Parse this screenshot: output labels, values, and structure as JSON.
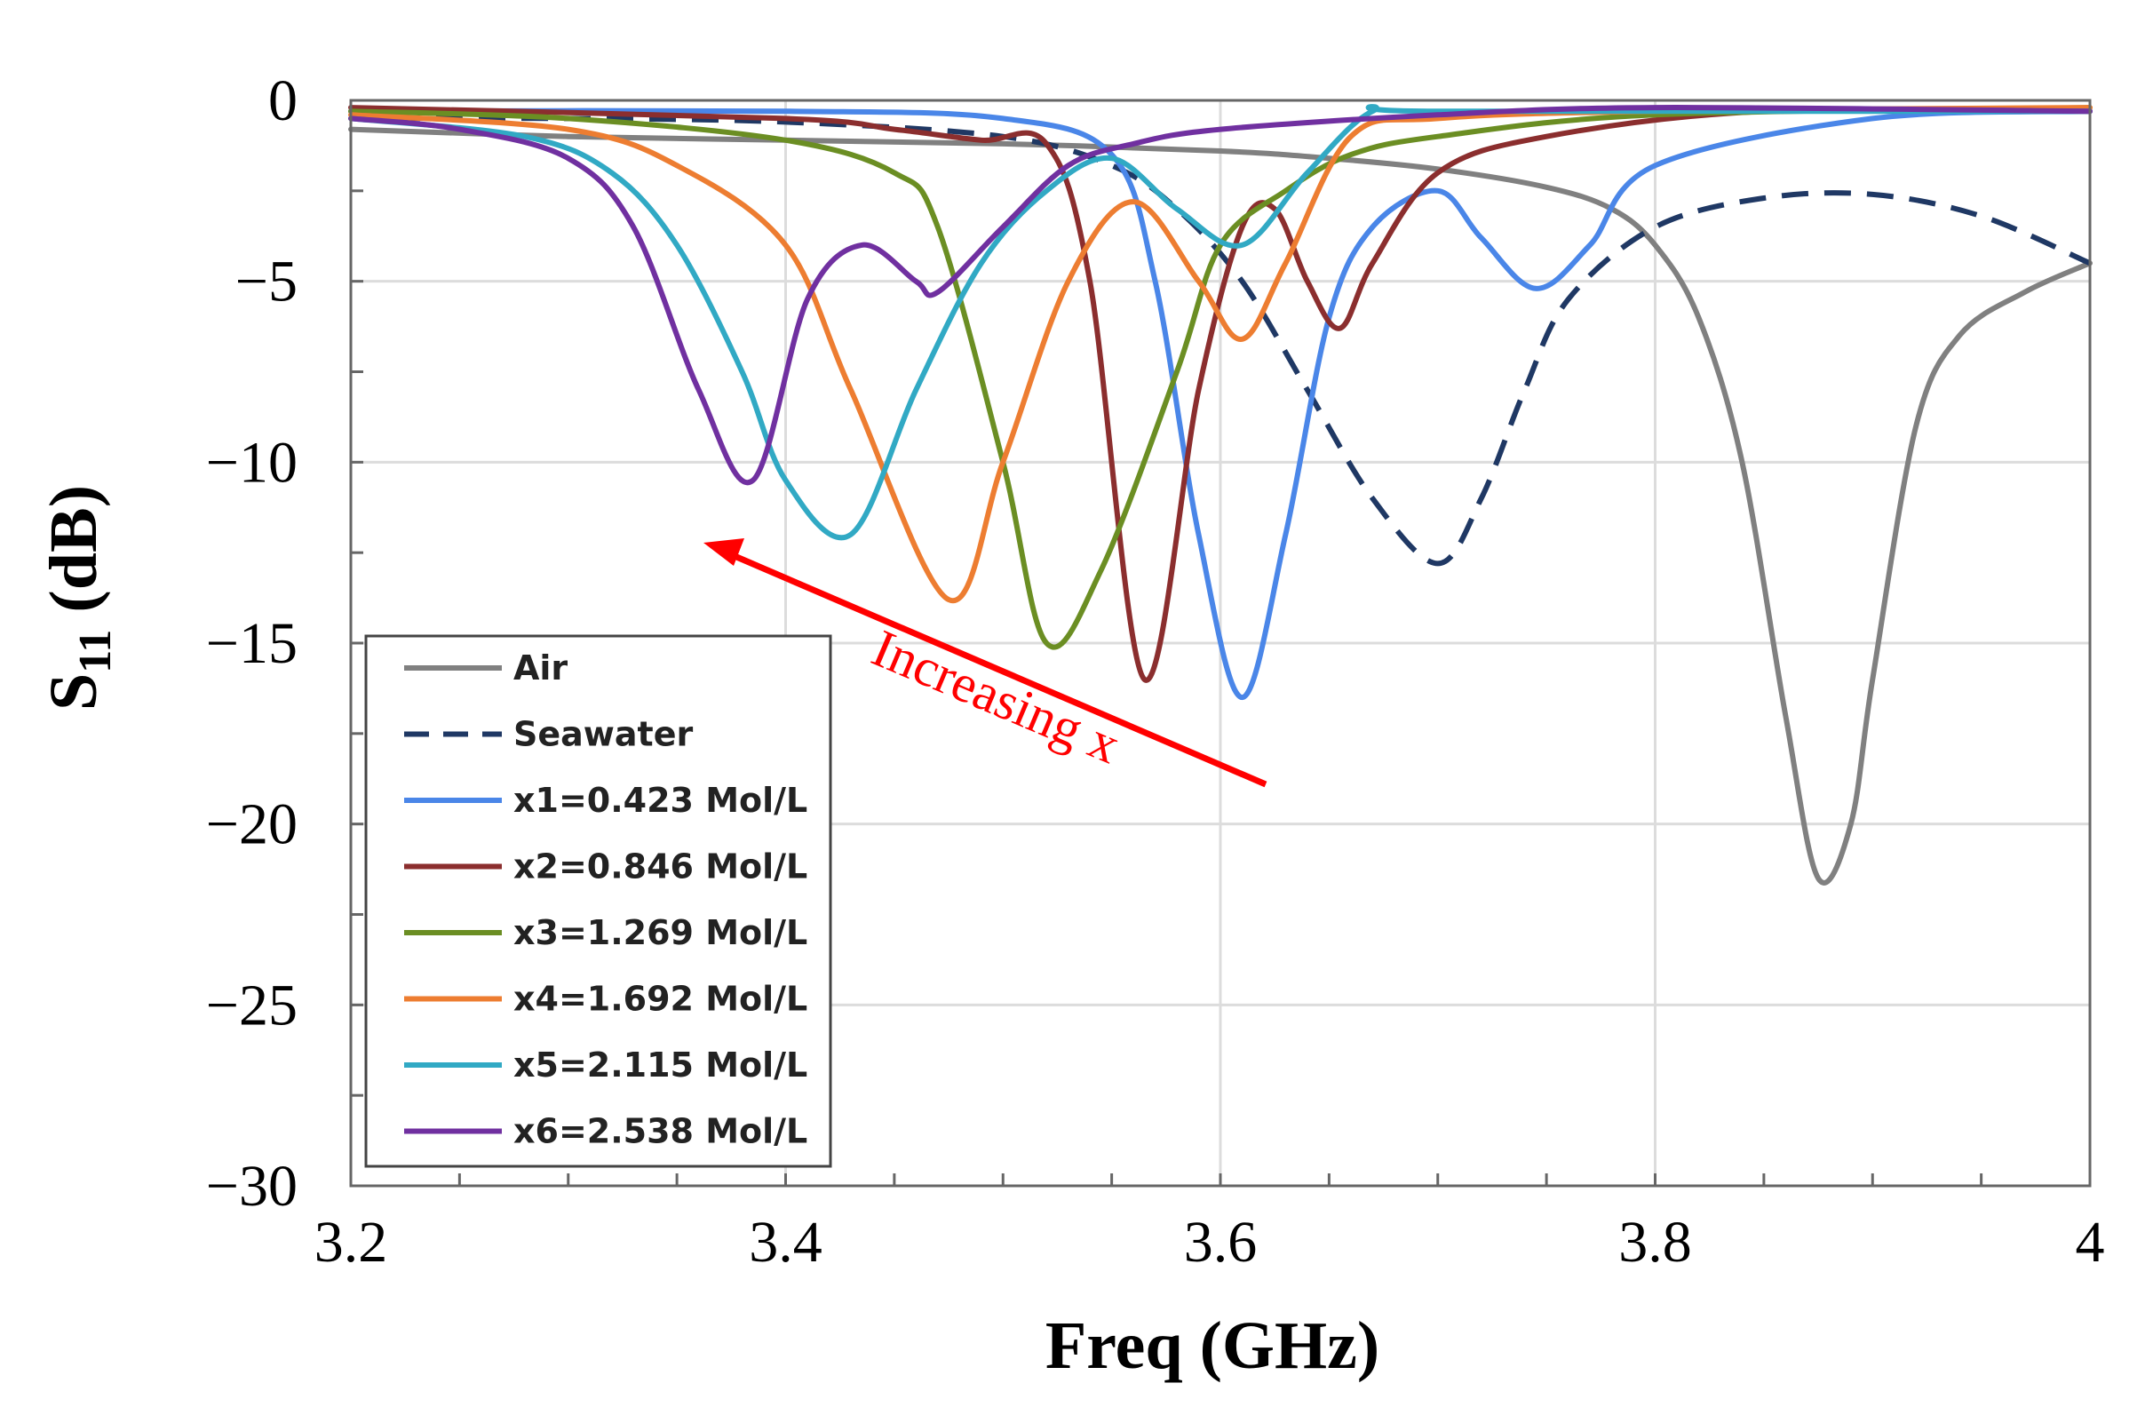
{
  "chart_data": {
    "type": "line",
    "title": "",
    "xlabel": "Freq (GHz)",
    "ylabel_main": "S",
    "ylabel_sub": "11",
    "ylabel_unit": " (dB)",
    "xlim": [
      3.2,
      4.0
    ],
    "ylim": [
      -30,
      0
    ],
    "xticks": [
      3.2,
      3.4,
      3.6,
      3.8,
      4.0
    ],
    "xtick_labels": [
      "3.2",
      "3.4",
      "3.6",
      "3.8",
      "4"
    ],
    "xminor_step": 0.05,
    "yticks": [
      0,
      -5,
      -10,
      -15,
      -20,
      -25,
      -30
    ],
    "ytick_labels": [
      "0",
      "−5",
      "−10",
      "−15",
      "−20",
      "−25",
      "−30"
    ],
    "yminor_step": 2.5,
    "grid": true,
    "legend_position": "bottom-left",
    "series": [
      {
        "name": "Air",
        "color": "#808080",
        "dash": "solid",
        "x": [
          3.2,
          3.3,
          3.4,
          3.5,
          3.6,
          3.65,
          3.7,
          3.75,
          3.78,
          3.8,
          3.82,
          3.84,
          3.86,
          3.875,
          3.89,
          3.9,
          3.92,
          3.94,
          3.97,
          4.0
        ],
        "y": [
          -0.8,
          -1.0,
          -1.1,
          -1.2,
          -1.4,
          -1.6,
          -1.9,
          -2.4,
          -3.0,
          -4.0,
          -6.0,
          -10.0,
          -17.0,
          -21.5,
          -20.0,
          -16.0,
          -9.0,
          -6.5,
          -5.3,
          -4.5
        ]
      },
      {
        "name": "Seawater",
        "color": "#1f3864",
        "dash": "dashed",
        "x": [
          3.2,
          3.3,
          3.4,
          3.5,
          3.55,
          3.58,
          3.61,
          3.64,
          3.67,
          3.7,
          3.72,
          3.74,
          3.76,
          3.8,
          3.85,
          3.9,
          3.95,
          4.0
        ],
        "y": [
          -0.5,
          -0.5,
          -0.6,
          -1.0,
          -1.8,
          -3.0,
          -5.0,
          -8.0,
          -11.0,
          -12.8,
          -11.0,
          -8.0,
          -5.5,
          -3.5,
          -2.7,
          -2.6,
          -3.2,
          -4.5
        ]
      },
      {
        "name": "x1=0.423 Mol/L",
        "color": "#4a86e8",
        "dash": "solid",
        "x": [
          3.2,
          3.4,
          3.5,
          3.55,
          3.57,
          3.59,
          3.61,
          3.63,
          3.65,
          3.67,
          3.7,
          3.72,
          3.745,
          3.77,
          3.8,
          3.9,
          4.0
        ],
        "y": [
          -0.3,
          -0.3,
          -0.5,
          -1.5,
          -5.0,
          -12.0,
          -16.5,
          -12.0,
          -6.0,
          -3.5,
          -2.5,
          -3.8,
          -5.2,
          -4.0,
          -1.8,
          -0.5,
          -0.3
        ]
      },
      {
        "name": "x2=0.846 Mol/L",
        "color": "#8b2e2e",
        "dash": "solid",
        "x": [
          3.2,
          3.4,
          3.45,
          3.49,
          3.52,
          3.54,
          3.565,
          3.59,
          3.61,
          3.625,
          3.64,
          3.655,
          3.67,
          3.7,
          3.75,
          3.85,
          4.0
        ],
        "y": [
          -0.2,
          -0.5,
          -0.8,
          -1.1,
          -1.2,
          -5.0,
          -16.0,
          -8.0,
          -3.5,
          -3.0,
          -5.0,
          -6.3,
          -4.5,
          -2.0,
          -1.0,
          -0.3,
          -0.3
        ]
      },
      {
        "name": "x3=1.269 Mol/L",
        "color": "#6b8e23",
        "dash": "solid",
        "x": [
          3.2,
          3.3,
          3.4,
          3.45,
          3.47,
          3.5,
          3.52,
          3.545,
          3.58,
          3.6,
          3.63,
          3.66,
          3.7,
          3.8,
          4.0
        ],
        "y": [
          -0.3,
          -0.5,
          -1.1,
          -2.0,
          -3.5,
          -10.0,
          -15.0,
          -13.0,
          -7.5,
          -4.0,
          -2.5,
          -1.5,
          -1.0,
          -0.4,
          -0.2
        ]
      },
      {
        "name": "x4=1.692 Mol/L",
        "color": "#ed7d31",
        "dash": "solid",
        "x": [
          3.2,
          3.3,
          3.35,
          3.4,
          3.43,
          3.475,
          3.5,
          3.53,
          3.56,
          3.59,
          3.61,
          3.63,
          3.66,
          3.7,
          3.8,
          4.0
        ],
        "y": [
          -0.4,
          -0.8,
          -1.8,
          -4.0,
          -8.0,
          -13.8,
          -10.0,
          -5.0,
          -2.8,
          -5.0,
          -6.6,
          -4.5,
          -1.0,
          -0.5,
          -0.3,
          -0.2
        ]
      },
      {
        "name": "x5=2.115 Mol/L",
        "color": "#31a9c4",
        "dash": "solid",
        "x": [
          3.2,
          3.28,
          3.32,
          3.35,
          3.38,
          3.4,
          3.43,
          3.46,
          3.49,
          3.52,
          3.55,
          3.58,
          3.61,
          3.64,
          3.67,
          3.7,
          4.0
        ],
        "y": [
          -0.5,
          -1.0,
          -2.0,
          -4.0,
          -7.5,
          -10.5,
          -12.0,
          -8.0,
          -4.5,
          -2.5,
          -1.6,
          -3.0,
          -4.0,
          -2.0,
          -0.3,
          -0.3,
          -0.3
        ]
      },
      {
        "name": "x6=2.538 Mol/L",
        "color": "#7030a0",
        "dash": "solid",
        "x": [
          3.2,
          3.25,
          3.3,
          3.33,
          3.36,
          3.385,
          3.41,
          3.435,
          3.46,
          3.47,
          3.5,
          3.53,
          3.56,
          3.6,
          3.7,
          3.8,
          4.0
        ],
        "y": [
          -0.5,
          -0.8,
          -1.6,
          -3.5,
          -8.0,
          -10.5,
          -5.5,
          -4.0,
          -5.0,
          -5.3,
          -3.5,
          -1.8,
          -1.2,
          -0.8,
          -0.4,
          -0.2,
          -0.3
        ]
      }
    ],
    "annotation": {
      "text": "Increasing x",
      "color": "#ff0000"
    }
  }
}
